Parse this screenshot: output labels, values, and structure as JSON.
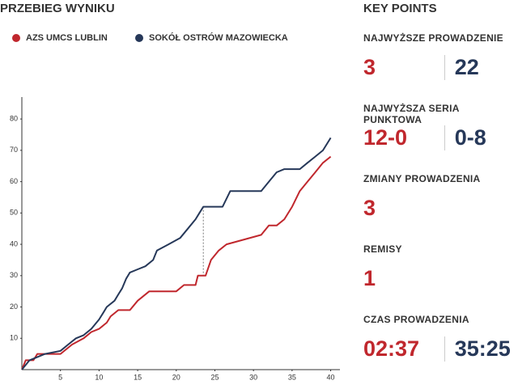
{
  "title": "PRZEBIEG WYNIKU",
  "chart_data": {
    "type": "line",
    "series": [
      {
        "name": "AZS UMCS LUBLIN",
        "color": "#c0272d",
        "x": [
          0,
          0.5,
          1.5,
          2,
          5,
          6.5,
          8,
          9,
          10,
          11,
          11.5,
          12.5,
          14,
          15,
          16.5,
          20,
          21,
          22.5,
          22.8,
          23.8,
          24.5,
          25.5,
          26.5,
          31,
          32,
          33,
          34,
          35,
          36,
          37,
          38,
          39,
          40
        ],
        "values": [
          0,
          3,
          3,
          5,
          5,
          8,
          10,
          12,
          13,
          15,
          17,
          19,
          19,
          22,
          25,
          25,
          27,
          27,
          30,
          30,
          35,
          38,
          40,
          43,
          46,
          46,
          48,
          52,
          57,
          60,
          63,
          66,
          68
        ]
      },
      {
        "name": "SOKÓŁ OSTRÓW MAZOWIECKA",
        "color": "#263859",
        "x": [
          0,
          1,
          3,
          5,
          6,
          7,
          8,
          9,
          10,
          10.5,
          11,
          12,
          12.5,
          13,
          13.5,
          14,
          15,
          16,
          17,
          17.5,
          19,
          20.5,
          21.5,
          22.5,
          23,
          23.5,
          26,
          27,
          31,
          32,
          33,
          34,
          36,
          37,
          38,
          39,
          39.5,
          40
        ],
        "values": [
          0,
          3,
          5,
          6,
          8,
          10,
          11,
          13,
          16,
          18,
          20,
          22,
          24,
          26,
          29,
          31,
          32,
          33,
          35,
          38,
          40,
          42,
          45,
          48,
          50,
          52,
          52,
          57,
          57,
          60,
          63,
          64,
          64,
          66,
          68,
          70,
          72,
          74
        ]
      }
    ],
    "xlim": [
      0,
      41.2
    ],
    "xticks": [
      5,
      10,
      15,
      20,
      25,
      30,
      35,
      40
    ],
    "ylim": [
      0,
      87
    ],
    "yticks": [
      10,
      20,
      30,
      40,
      50,
      60,
      70,
      80
    ]
  },
  "key_points": {
    "title": "KEY POINTS",
    "items": [
      {
        "label": "NAJWYŻSZE PROWADZENIE",
        "values": [
          3,
          22
        ]
      },
      {
        "label": "NAJWYŻSZA SERIA PUNKTOWA",
        "values": [
          "12-0",
          "0-8"
        ]
      },
      {
        "label": "ZMIANY PROWADZENIA",
        "values": [
          3
        ]
      },
      {
        "label": "REMISY",
        "values": [
          1
        ]
      },
      {
        "label": "CZAS PROWADZENIA",
        "values": [
          "02:37",
          "35:25"
        ]
      }
    ]
  }
}
